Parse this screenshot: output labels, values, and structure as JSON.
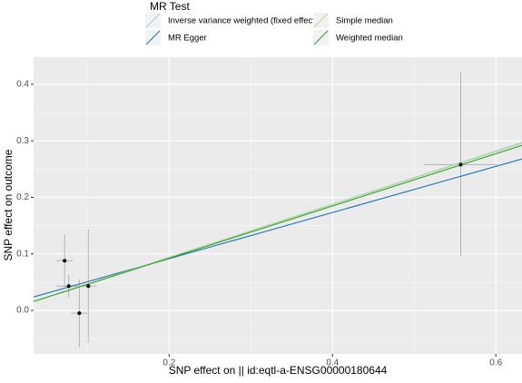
{
  "chart_data": {
    "type": "scatter",
    "x_label": "SNP effect on  || id:eqtl-a-ENSG00000180644",
    "y_label": "SNP effect on outcome",
    "legend_title": "MR Test",
    "xlim": [
      0.034,
      0.632
    ],
    "ylim": [
      -0.077,
      0.448
    ],
    "xticks": [
      0.2,
      0.4,
      0.6
    ],
    "yticks": [
      {
        "value": 0,
        "label": "0.0"
      },
      0.1,
      0.2,
      0.3,
      0.4
    ],
    "grid": true,
    "point_color": "#000000",
    "error_color": "#b3b3b3",
    "points": [
      {
        "x": 0.072,
        "y": 0.088,
        "x_error": 0.01,
        "y_error": 0.047
      },
      {
        "x": 0.077,
        "y": 0.043,
        "x_error": 0.015,
        "y_error": 0.02
      },
      {
        "x": 0.101,
        "y": 0.043,
        "x_error": 0.01,
        "y_error": 0.1
      },
      {
        "x": 0.09,
        "y": -0.005,
        "x_error": 0.01,
        "y_error": 0.06
      },
      {
        "x": 0.557,
        "y": 0.258,
        "x_error": 0.045,
        "y_error": 0.163
      }
    ],
    "series": [
      {
        "name": "Inverse variance weighted (fixed effects)",
        "color": "#a6cee3",
        "slope": 0.47,
        "intercept": 0
      },
      {
        "name": "MR Egger",
        "color": "#1f78b4",
        "slope": 0.408,
        "intercept": 0.01
      },
      {
        "name": "Simple median",
        "color": "#b2df8a",
        "slope": 0.468,
        "intercept": 0
      },
      {
        "name": "Weighted median",
        "color": "#33a02c",
        "slope": 0.462,
        "intercept": 0
      }
    ]
  }
}
